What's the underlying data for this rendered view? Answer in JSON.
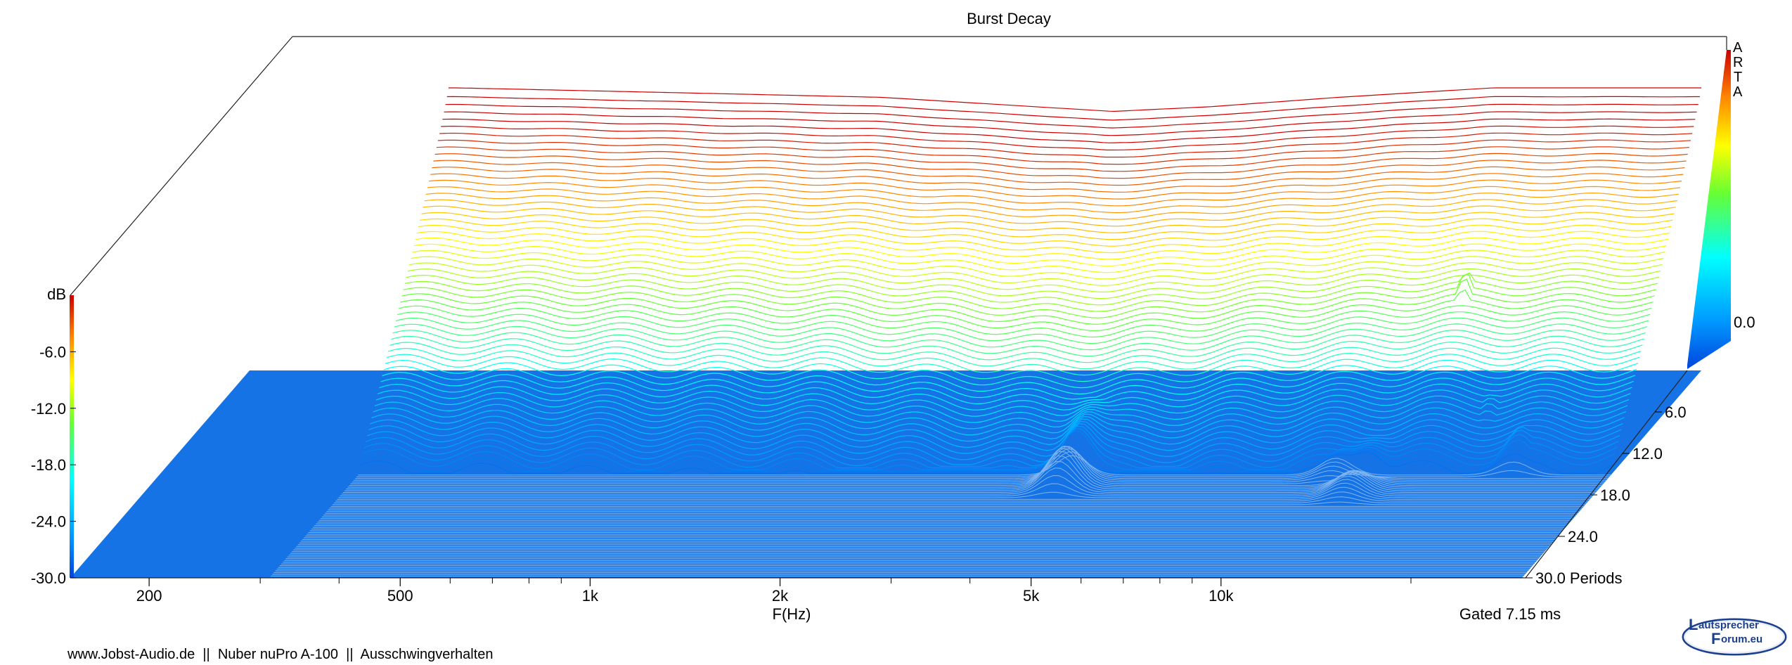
{
  "chart_data": {
    "type": "waterfall",
    "title": "Burst Decay",
    "xlabel": "F(Hz)",
    "zlabel": "dB",
    "z_unit_suffix": "Periods",
    "x_scale": "log",
    "xlim": [
      150,
      30000
    ],
    "x_ticks": [
      {
        "value": 200,
        "label": "200"
      },
      {
        "value": 500,
        "label": "500"
      },
      {
        "value": 1000,
        "label": "1k"
      },
      {
        "value": 2000,
        "label": "2k"
      },
      {
        "value": 5000,
        "label": "5k"
      },
      {
        "value": 10000,
        "label": "10k"
      }
    ],
    "y_range_db": [
      -30,
      0
    ],
    "y_ticks": [
      {
        "value": -6,
        "label": "-6.0"
      },
      {
        "value": -12,
        "label": "-12.0"
      },
      {
        "value": -18,
        "label": "-18.0"
      },
      {
        "value": -24,
        "label": "-24.0"
      },
      {
        "value": -30,
        "label": "-30.0"
      }
    ],
    "colorbar_ticks": [
      {
        "value": 0,
        "label": "0.0"
      }
    ],
    "periods_range": [
      0,
      30
    ],
    "period_ticks": [
      {
        "value": 6,
        "label": "6.0"
      },
      {
        "value": 12,
        "label": "12.0"
      },
      {
        "value": 18,
        "label": "18.0"
      },
      {
        "value": 24,
        "label": "24.0"
      },
      {
        "value": 30,
        "label": "30.0"
      }
    ],
    "num_slices": 120,
    "start_level_db": [
      {
        "f": 320,
        "db": 0
      },
      {
        "f": 700,
        "db": -0.5
      },
      {
        "f": 1500,
        "db": -1.0
      },
      {
        "f": 3500,
        "db": -2.5
      },
      {
        "f": 5000,
        "db": -2.0
      },
      {
        "f": 8000,
        "db": -1.0
      },
      {
        "f": 14000,
        "db": 0
      },
      {
        "f": 30000,
        "db": 0
      }
    ],
    "decay_resonances": [
      {
        "f": 2500,
        "db": -22,
        "periods": 3
      },
      {
        "f": 8500,
        "db": -14,
        "periods": 2
      },
      {
        "f": 10000,
        "db": -16,
        "periods": 5
      },
      {
        "f": 12500,
        "db": -15,
        "periods": 4
      },
      {
        "f": 15000,
        "db": -14,
        "periods": 6
      },
      {
        "f": 18000,
        "db": -24,
        "periods": 10
      },
      {
        "f": 21000,
        "db": -26,
        "periods": 12
      },
      {
        "f": 4200,
        "db": -26,
        "periods": 15
      },
      {
        "f": 11000,
        "db": -28,
        "periods": 13
      },
      {
        "f": 12200,
        "db": -28,
        "periods": 16
      }
    ],
    "gate_info": "Gated 7.15 ms"
  },
  "brand_vertical": [
    "A",
    "R",
    "T",
    "A"
  ],
  "footer_text": "www.Jobst-Audio.de  ||  Nuber nuPro A-100  ||  Ausschwingverhalten",
  "logo": {
    "line1": "autsprecher",
    "line2": "orum.eu",
    "letter": "L",
    "letter2": "F"
  },
  "colors": {
    "floor": "#1673e6",
    "axis": "#000000",
    "colormap": [
      "#0033cc",
      "#0095ff",
      "#00ffff",
      "#00ff66",
      "#ffff00",
      "#ff8800",
      "#cc0000"
    ]
  }
}
